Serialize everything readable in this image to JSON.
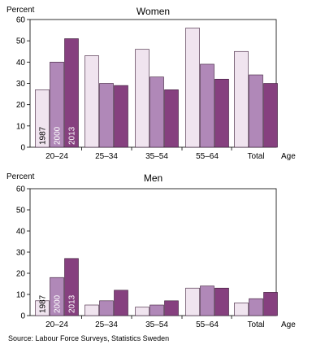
{
  "chart_data": [
    {
      "type": "bar",
      "title": "Women",
      "ylabel": "Percent",
      "xlabel": "Age",
      "ylim": [
        0,
        60
      ],
      "yticks": [
        0,
        10,
        20,
        30,
        40,
        50,
        60
      ],
      "grid": false,
      "categories": [
        "20–24",
        "25–34",
        "35–54",
        "55–64",
        "Total"
      ],
      "series": [
        {
          "name": "1987",
          "values": [
            27,
            43,
            46,
            56,
            45
          ]
        },
        {
          "name": "2000",
          "values": [
            40,
            30,
            33,
            39,
            34
          ]
        },
        {
          "name": "2013",
          "values": [
            51,
            29,
            27,
            32,
            30
          ]
        }
      ]
    },
    {
      "type": "bar",
      "title": "Men",
      "ylabel": "Percent",
      "xlabel": "Age",
      "ylim": [
        0,
        60
      ],
      "yticks": [
        0,
        10,
        20,
        30,
        40,
        50,
        60
      ],
      "grid": false,
      "categories": [
        "20–24",
        "25–34",
        "35–54",
        "55–64",
        "Total"
      ],
      "series": [
        {
          "name": "1987",
          "values": [
            7,
            5,
            4,
            13,
            6
          ]
        },
        {
          "name": "2000",
          "values": [
            18,
            7,
            5,
            14,
            8
          ]
        },
        {
          "name": "2013",
          "values": [
            27,
            12,
            7,
            13,
            11
          ]
        }
      ]
    }
  ],
  "colors": {
    "1987": "#f0e4ef",
    "2000": "#b088b8",
    "2013": "#86407f",
    "outline": "#3a1a36"
  },
  "source": "Source: Labour Force Surveys, Statistics Sweden"
}
